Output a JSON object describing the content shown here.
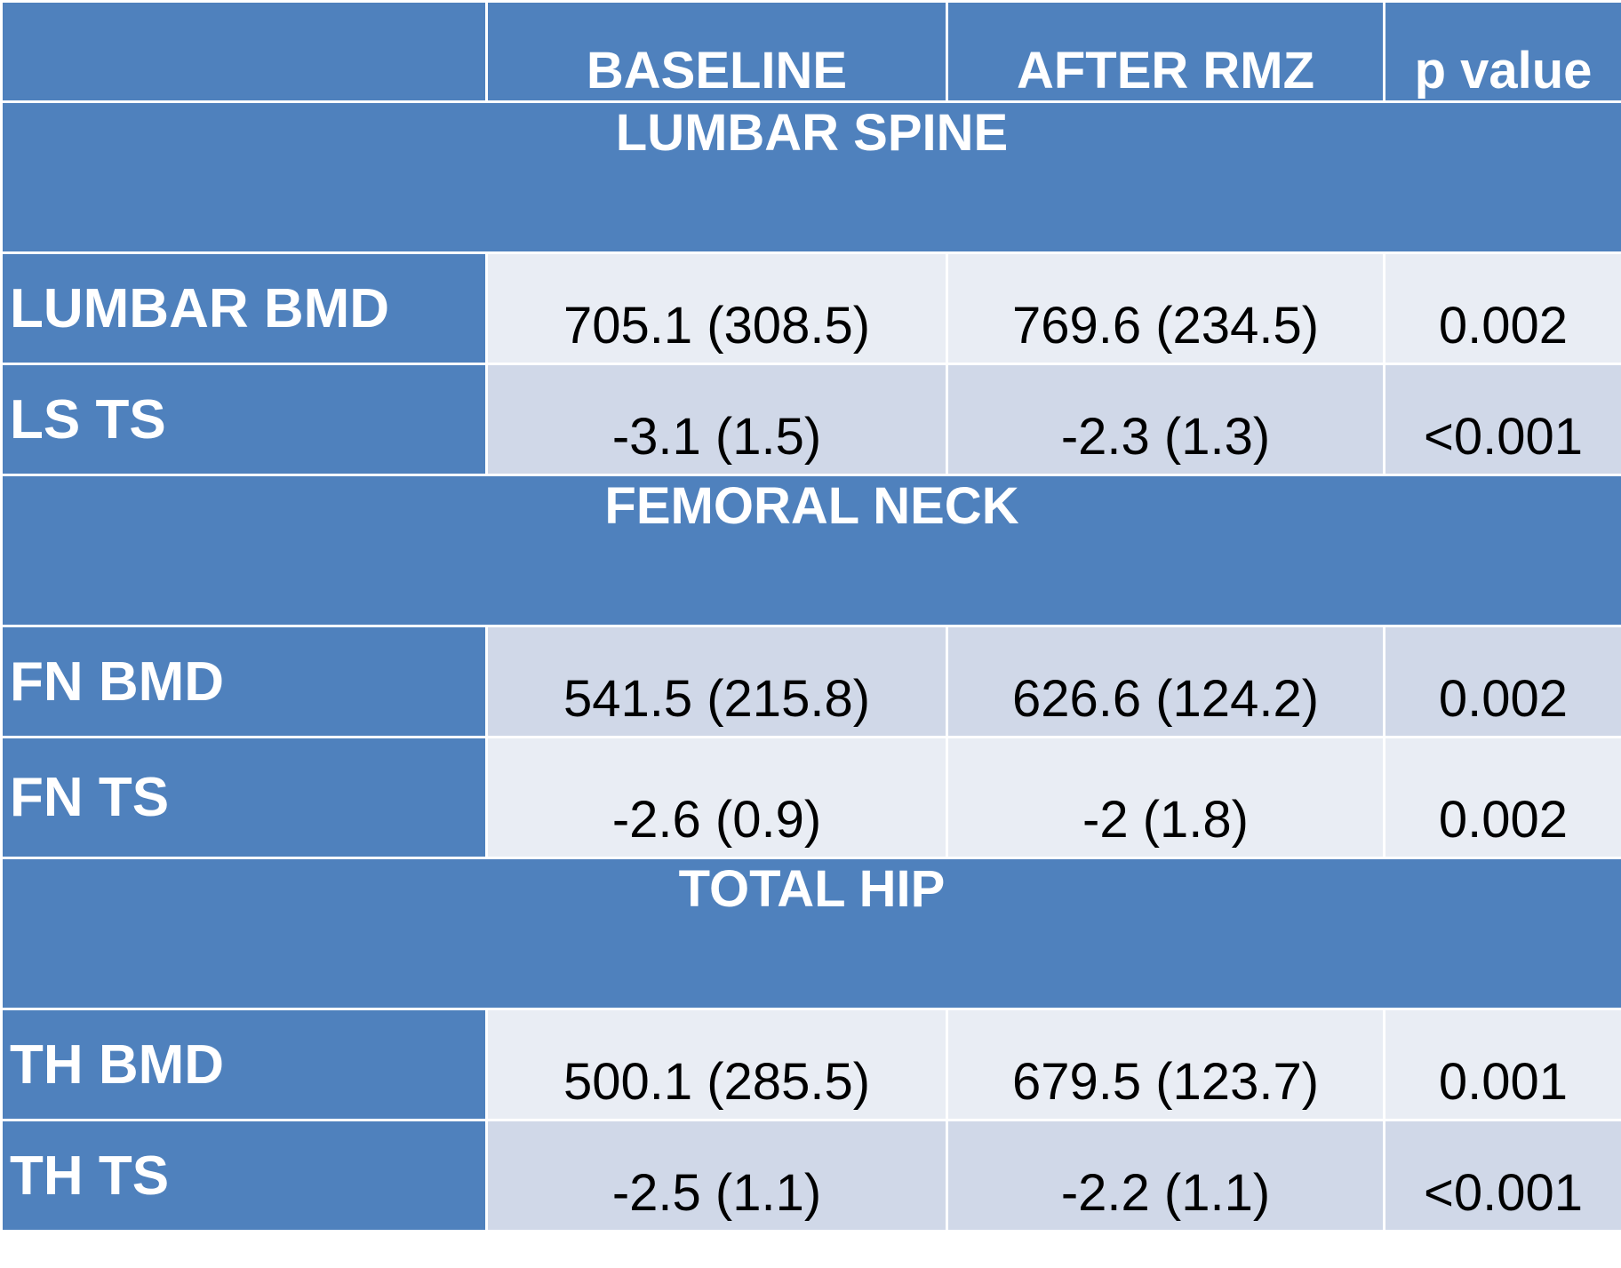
{
  "chart_data": {
    "type": "table",
    "columns": [
      "",
      "BASELINE",
      "AFTER RMZ",
      "p value"
    ],
    "sections": [
      {
        "title": "LUMBAR SPINE",
        "rows": [
          {
            "label": "LUMBAR BMD",
            "baseline": "705.1  (308.5)",
            "after": "769.6 (234.5)",
            "p": "0.002"
          },
          {
            "label": "LS TS",
            "baseline": "-3.1  (1.5)",
            "after": "-2.3  (1.3)",
            "p": "<0.001"
          }
        ]
      },
      {
        "title": "FEMORAL NECK",
        "rows": [
          {
            "label": "FN BMD",
            "baseline": "541.5  (215.8)",
            "after": "626.6 (124.2)",
            "p": "0.002"
          },
          {
            "label": "FN TS",
            "baseline": "-2.6  (0.9)",
            "after": "-2  (1.8)",
            "p": "0.002"
          }
        ]
      },
      {
        "title": "TOTAL HIP",
        "rows": [
          {
            "label": "TH BMD",
            "baseline": "500.1  (285.5)",
            "after": "679.5 (123.7)",
            "p": "0.001"
          },
          {
            "label": "TH TS",
            "baseline": "-2.5  (1.1)",
            "after": "-2.2  (1.1)",
            "p": "<0.001"
          }
        ]
      }
    ]
  },
  "colors": {
    "header_blue": "#4f81bd",
    "row_light": "#e9edf4",
    "row_dark": "#d0d8e8",
    "border": "#ffffff"
  }
}
